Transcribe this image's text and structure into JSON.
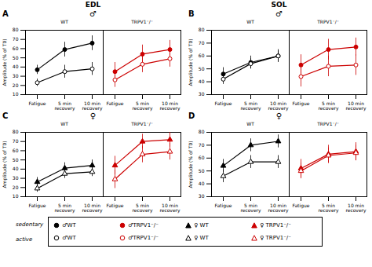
{
  "chart_data": [
    {
      "type": "line",
      "title": "EDL",
      "panel_label": "A",
      "sex_label": "♂",
      "panels": [
        "WT",
        "TRPV1⁻/⁻"
      ],
      "categories": [
        "Fatigue",
        "5 min\nrecovery",
        "10 min\nrecovery"
      ],
      "ylabel": "Amplitude (% of T0)",
      "ylim": [
        10,
        80
      ],
      "yticks": [
        10,
        20,
        30,
        40,
        50,
        60,
        70,
        80
      ],
      "series": [
        {
          "name": "♂WT",
          "group": "sedentary",
          "panel": "WT",
          "color": "#000000",
          "marker": "circle",
          "values": [
            37,
            59,
            66
          ],
          "errors": [
            5,
            8,
            8
          ]
        },
        {
          "name": "♂WT",
          "group": "active",
          "panel": "WT",
          "color": "#000000",
          "marker": "circle-open",
          "values": [
            23,
            35,
            38
          ],
          "errors": [
            4,
            7,
            7
          ]
        },
        {
          "name": "♂TRPV1⁻/⁻",
          "group": "sedentary",
          "panel": "TRPV1⁻/⁻",
          "color": "#cc0000",
          "marker": "circle",
          "values": [
            35,
            54,
            59
          ],
          "errors": [
            10,
            10,
            10
          ]
        },
        {
          "name": "♂TRPV1⁻/⁻",
          "group": "active",
          "panel": "TRPV1⁻/⁻",
          "color": "#cc0000",
          "marker": "circle-open",
          "values": [
            26,
            43,
            49
          ],
          "errors": [
            8,
            9,
            9
          ]
        }
      ]
    },
    {
      "type": "line",
      "title": "SOL",
      "panel_label": "B",
      "sex_label": "♂",
      "panels": [
        "WT",
        "TRPV1⁻/⁻"
      ],
      "categories": [
        "Fatigue",
        "5 min\nrecovery",
        "10 min\nrecovery"
      ],
      "ylabel": "Amplitude (% of T0)",
      "ylim": [
        30,
        80
      ],
      "yticks": [
        30,
        40,
        50,
        60,
        70,
        80
      ],
      "series": [
        {
          "name": "♂WT",
          "group": "sedentary",
          "panel": "WT",
          "color": "#000000",
          "marker": "circle",
          "values": [
            46,
            55,
            60
          ],
          "errors": [
            5,
            5,
            5
          ]
        },
        {
          "name": "♂WT",
          "group": "active",
          "panel": "WT",
          "color": "#000000",
          "marker": "circle-open",
          "values": [
            42,
            54,
            60
          ],
          "errors": [
            4,
            4,
            4
          ]
        },
        {
          "name": "♂TRPV1⁻/⁻",
          "group": "sedentary",
          "panel": "TRPV1⁻/⁻",
          "color": "#cc0000",
          "marker": "circle",
          "values": [
            53,
            65,
            67
          ],
          "errors": [
            8,
            8,
            7
          ]
        },
        {
          "name": "♂TRPV1⁻/⁻",
          "group": "active",
          "panel": "TRPV1⁻/⁻",
          "color": "#cc0000",
          "marker": "circle-open",
          "values": [
            44,
            52,
            53
          ],
          "errors": [
            8,
            8,
            8
          ]
        }
      ]
    },
    {
      "type": "line",
      "panel_label": "C",
      "sex_label": "♀",
      "panels": [
        "WT",
        "TRPV1⁻/⁻"
      ],
      "categories": [
        "Fatigue",
        "5 min\nrecovery",
        "10 min\nrecovery"
      ],
      "ylabel": "Amplitude (% of T0)",
      "ylim": [
        10,
        80
      ],
      "yticks": [
        10,
        20,
        30,
        40,
        50,
        60,
        70,
        80
      ],
      "series": [
        {
          "name": "♀ WT",
          "group": "sedentary",
          "panel": "WT",
          "color": "#000000",
          "marker": "triangle",
          "values": [
            26,
            41,
            44
          ],
          "errors": [
            5,
            6,
            6
          ]
        },
        {
          "name": "♀ WT",
          "group": "active",
          "panel": "WT",
          "color": "#000000",
          "marker": "triangle-open",
          "values": [
            19,
            35,
            37
          ],
          "errors": [
            4,
            5,
            5
          ]
        },
        {
          "name": "♀ TRPV1⁻/⁻",
          "group": "sedentary",
          "panel": "TRPV1⁻/⁻",
          "color": "#cc0000",
          "marker": "triangle",
          "values": [
            44,
            70,
            72
          ],
          "errors": [
            10,
            8,
            8
          ]
        },
        {
          "name": "♀ TRPV1⁻/⁻",
          "group": "active",
          "panel": "TRPV1⁻/⁻",
          "color": "#cc0000",
          "marker": "triangle-open",
          "values": [
            29,
            56,
            59
          ],
          "errors": [
            10,
            9,
            9
          ]
        }
      ]
    },
    {
      "type": "line",
      "panel_label": "D",
      "sex_label": "♀",
      "panels": [
        "WT",
        "TRPV1⁻/⁻"
      ],
      "categories": [
        "Fatigue",
        "5 min\nrecovery",
        "10 min\nrecovery"
      ],
      "ylabel": "Amplitude (% of T0)",
      "ylim": [
        30,
        80
      ],
      "yticks": [
        30,
        40,
        50,
        60,
        70,
        80
      ],
      "series": [
        {
          "name": "♀ WT",
          "group": "sedentary",
          "panel": "WT",
          "color": "#000000",
          "marker": "triangle",
          "values": [
            54,
            70,
            73
          ],
          "errors": [
            5,
            5,
            5
          ]
        },
        {
          "name": "♀ WT",
          "group": "active",
          "panel": "WT",
          "color": "#000000",
          "marker": "triangle-open",
          "values": [
            46,
            57,
            57
          ],
          "errors": [
            5,
            5,
            5
          ]
        },
        {
          "name": "♀ TRPV1⁻/⁻",
          "group": "sedentary",
          "panel": "TRPV1⁻/⁻",
          "color": "#cc0000",
          "marker": "triangle",
          "values": [
            52,
            63,
            65
          ],
          "errors": [
            7,
            7,
            7
          ]
        },
        {
          "name": "♀ TRPV1⁻/⁻",
          "group": "active",
          "panel": "TRPV1⁻/⁻",
          "color": "#cc0000",
          "marker": "triangle-open",
          "values": [
            50,
            62,
            64
          ],
          "errors": [
            6,
            6,
            6
          ]
        }
      ]
    }
  ]
}
